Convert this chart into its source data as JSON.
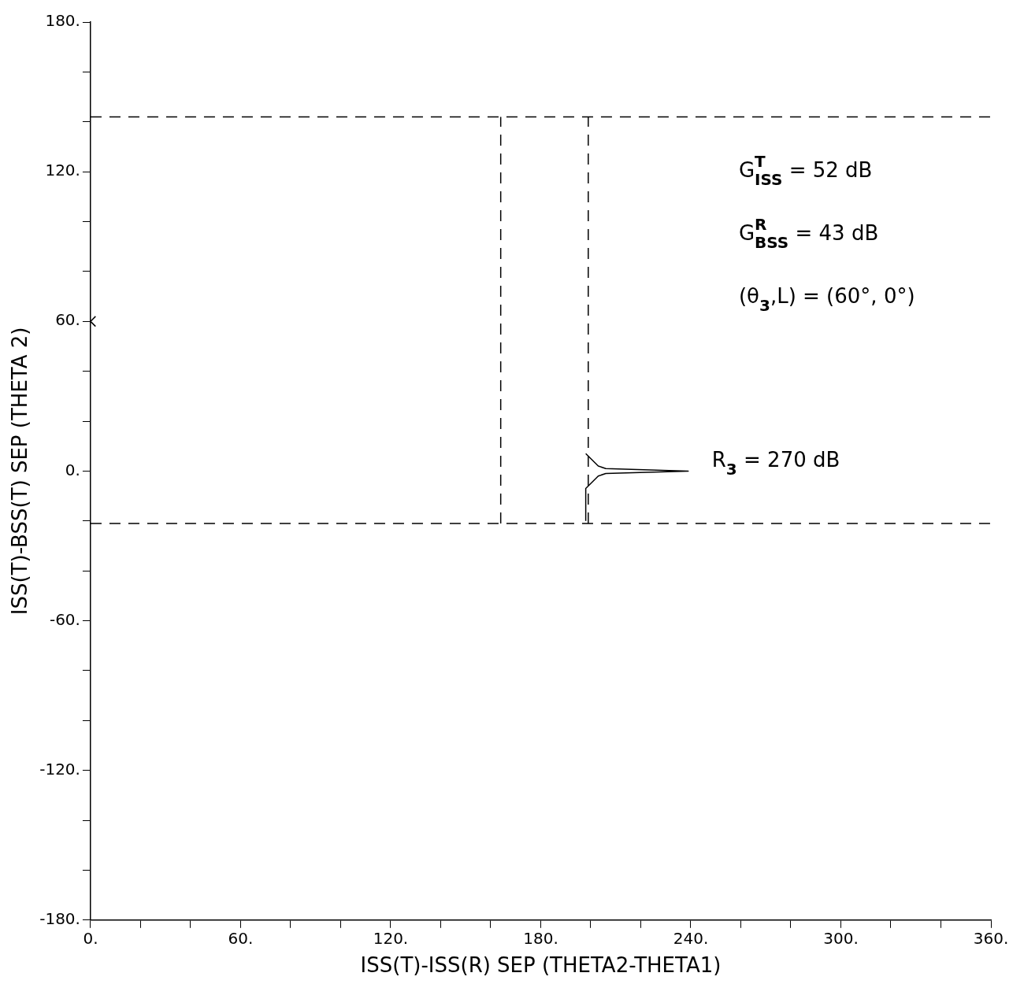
{
  "chart_data": {
    "type": "line",
    "xlabel": "ISS(T)-ISS(R) SEP (THETA2-THETA1)",
    "ylabel": "ISS(T)-BSS(T) SEP (THETA 2)",
    "xlim": [
      0,
      360
    ],
    "ylim": [
      -180,
      180
    ],
    "xticks": [
      {
        "value": 0,
        "label": "0."
      },
      {
        "value": 20,
        "label": null
      },
      {
        "value": 40,
        "label": null
      },
      {
        "value": 60,
        "label": "60."
      },
      {
        "value": 80,
        "label": null
      },
      {
        "value": 100,
        "label": null
      },
      {
        "value": 120,
        "label": "120."
      },
      {
        "value": 140,
        "label": null
      },
      {
        "value": 160,
        "label": null
      },
      {
        "value": 180,
        "label": "180."
      },
      {
        "value": 200,
        "label": null
      },
      {
        "value": 220,
        "label": null
      },
      {
        "value": 240,
        "label": "240."
      },
      {
        "value": 260,
        "label": null
      },
      {
        "value": 280,
        "label": null
      },
      {
        "value": 300,
        "label": "300."
      },
      {
        "value": 320,
        "label": null
      },
      {
        "value": 340,
        "label": null
      },
      {
        "value": 360,
        "label": "360."
      }
    ],
    "yticks": [
      {
        "value": -180,
        "label": "-180."
      },
      {
        "value": -160,
        "label": null
      },
      {
        "value": -140,
        "label": null
      },
      {
        "value": -120,
        "label": "-120."
      },
      {
        "value": -100,
        "label": null
      },
      {
        "value": -80,
        "label": null
      },
      {
        "value": -60,
        "label": "-60."
      },
      {
        "value": -40,
        "label": null
      },
      {
        "value": -20,
        "label": null
      },
      {
        "value": 0,
        "label": "0."
      },
      {
        "value": 20,
        "label": null
      },
      {
        "value": 40,
        "label": null
      },
      {
        "value": 60,
        "label": "60."
      },
      {
        "value": 80,
        "label": null
      },
      {
        "value": 100,
        "label": null
      },
      {
        "value": 120,
        "label": "120."
      },
      {
        "value": 140,
        "label": null
      },
      {
        "value": 160,
        "label": null
      },
      {
        "value": 180,
        "label": "180."
      }
    ],
    "marker": "none",
    "legend": false,
    "series": [
      {
        "color": "#000000",
        "line_style": "dashed",
        "x": [
          164,
          164
        ],
        "values": [
          -21,
          142
        ]
      },
      {
        "color": "#000000",
        "line_style": "dashed",
        "x": [
          199,
          199
        ],
        "values": [
          -21,
          142
        ]
      },
      {
        "color": "#000000",
        "x": [
          198,
          198,
          203,
          206,
          239,
          206,
          203,
          198
        ],
        "values": [
          -20,
          -7,
          -2,
          -1,
          0,
          1,
          2,
          7
        ]
      },
      {
        "type": "scatter",
        "marker": "cross",
        "color": "#000000",
        "x": [
          0
        ],
        "values": [
          60
        ]
      }
    ],
    "ref_lines": [
      {
        "axis": "y",
        "value": 142,
        "color": "#000000",
        "line_style": "dashed"
      },
      {
        "axis": "y",
        "value": -21,
        "color": "#000000",
        "line_style": "dashed"
      }
    ],
    "annotations": [
      "G$^{T}$$_{ISS}$ = 52 dB",
      "G$^{R}$$_{BSS}$ = 43 dB",
      "(θ$_{3}$,L) = (60°, 0°)",
      {
        "text": "R$_{3}$ = 270 dB",
        "x": 239,
        "y": 0
      }
    ]
  }
}
